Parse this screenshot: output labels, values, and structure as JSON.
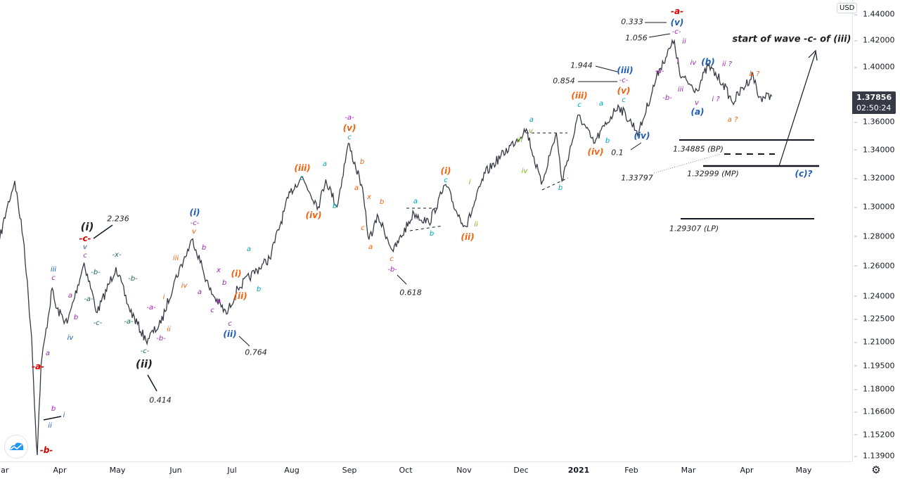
{
  "colors": {
    "price": "#363a45",
    "red": "#d50000",
    "blue": "#1e5bb8",
    "purple": "#9c27b0",
    "green": "#1b6b5a",
    "orange": "#f4600c",
    "cyan": "#00a5b5",
    "olive": "#7cb518",
    "black": "#222222"
  },
  "price_axis": {
    "currency": "USD",
    "last_price": "1.37856",
    "countdown": "02:50:24",
    "settings_icon": "gear-icon"
  },
  "chart_data": {
    "type": "line",
    "yscale": "log",
    "ylim": [
      1.139,
      1.44
    ],
    "grid": false,
    "y_ticks": [
      "1.44000",
      "1.42000",
      "1.40000",
      "1.36000",
      "1.34000",
      "1.32000",
      "1.30000",
      "1.28000",
      "1.26000",
      "1.24000",
      "1.22500",
      "1.21000",
      "1.19500",
      "1.18000",
      "1.16600",
      "1.15200",
      "1.13900"
    ],
    "x_ticks": [
      "Mar",
      "Apr",
      "May",
      "Jun",
      "Jul",
      "Aug",
      "Sep",
      "Oct",
      "Nov",
      "Dec",
      "2021",
      "Feb",
      "Mar",
      "Apr",
      "May"
    ],
    "series": [
      {
        "x": [
          "2020-02-28",
          "2020-03-03",
          "2020-03-07",
          "2020-03-12",
          "2020-03-16",
          "2020-03-18",
          "2020-03-19",
          "2020-03-21",
          "2020-03-27",
          "2020-03-29",
          "2020-04-04",
          "2020-04-13",
          "2020-04-20",
          "2020-04-30",
          "2020-05-07",
          "2020-05-16",
          "2020-05-24",
          "2020-05-31",
          "2020-06-10",
          "2020-06-19",
          "2020-06-28",
          "2020-07-04",
          "2020-07-21",
          "2020-08-01",
          "2020-08-07",
          "2020-08-16",
          "2020-08-20",
          "2020-08-26",
          "2020-09-01",
          "2020-09-08",
          "2020-09-12",
          "2020-09-17",
          "2020-09-25",
          "2020-10-06",
          "2020-10-14",
          "2020-10-23",
          "2020-10-29",
          "2020-11-03",
          "2020-11-13",
          "2020-12-05",
          "2020-12-13",
          "2020-12-21",
          "2020-12-24",
          "2021-01-02",
          "2021-01-10",
          "2021-01-23",
          "2021-02-03",
          "2021-02-14",
          "2021-02-22",
          "2021-02-25",
          "2021-03-06",
          "2021-03-12",
          "2021-03-20",
          "2021-03-25",
          "2021-04-05",
          "2021-04-08",
          "2021-04-15"
        ],
        "y": [
          1.278,
          1.3,
          1.318,
          1.274,
          1.213,
          1.16,
          1.1395,
          1.195,
          1.245,
          1.232,
          1.222,
          1.262,
          1.229,
          1.259,
          1.232,
          1.211,
          1.222,
          1.249,
          1.278,
          1.244,
          1.228,
          1.245,
          1.265,
          1.31,
          1.321,
          1.3,
          1.319,
          1.3,
          1.3445,
          1.3155,
          1.2776,
          1.2932,
          1.2695,
          1.2958,
          1.2888,
          1.3155,
          1.2958,
          1.2864,
          1.3234,
          1.3548,
          1.3155,
          1.3521,
          1.3179,
          1.365,
          1.3445,
          1.372,
          1.3521,
          1.3987,
          1.4197,
          1.3935,
          1.3832,
          1.401,
          1.388,
          1.3739,
          1.3946,
          1.3776,
          1.37856
        ]
      }
    ],
    "levels": [
      {
        "label": "1.34885 (BP)",
        "value": 1.34885
      },
      {
        "label": "1.32999 (MP)",
        "value": 1.32999
      },
      {
        "label": "1.29307 (LP)",
        "value": 1.29307
      },
      {
        "label": "1.33797",
        "value": 1.33797
      }
    ],
    "annotations": [
      {
        "t": "(i)",
        "c": "black",
        "k": "big"
      },
      {
        "t": "2.236",
        "c": "black",
        "k": "num"
      },
      {
        "t": "-c-",
        "c": "red",
        "k": "mid"
      },
      {
        "t": "v",
        "c": "blue"
      },
      {
        "t": "c",
        "c": "purple"
      },
      {
        "t": "iii",
        "c": "blue"
      },
      {
        "t": "c",
        "c": "purple"
      },
      {
        "t": "a",
        "c": "purple"
      },
      {
        "t": "b",
        "c": "purple"
      },
      {
        "t": "iv",
        "c": "blue"
      },
      {
        "t": "-b-",
        "c": "green"
      },
      {
        "t": "-a-",
        "c": "green"
      },
      {
        "t": "-c-",
        "c": "green"
      },
      {
        "t": "-x-",
        "c": "green"
      },
      {
        "t": "-b-",
        "c": "green"
      },
      {
        "t": "-a-",
        "c": "green"
      },
      {
        "t": "-c-",
        "c": "green"
      },
      {
        "t": "-a-",
        "c": "purple"
      },
      {
        "t": "-b-",
        "c": "purple"
      },
      {
        "t": "i",
        "c": "orange"
      },
      {
        "t": "ii",
        "c": "orange"
      },
      {
        "t": "iii",
        "c": "orange"
      },
      {
        "t": "iv",
        "c": "orange"
      },
      {
        "t": "(ii)",
        "c": "black",
        "k": "big"
      },
      {
        "t": "0.414",
        "c": "black",
        "k": "num"
      },
      {
        "t": "a",
        "c": "purple"
      },
      {
        "t": "-a-",
        "c": "red",
        "k": "mid"
      },
      {
        "t": "b",
        "c": "purple"
      },
      {
        "t": "i",
        "c": "blue"
      },
      {
        "t": "ii",
        "c": "blue"
      },
      {
        "t": "-b-",
        "c": "red",
        "k": "mid"
      },
      {
        "t": "(i)",
        "c": "blue",
        "k": "mid"
      },
      {
        "t": "-c-",
        "c": "purple"
      },
      {
        "t": "v",
        "c": "orange"
      },
      {
        "t": "b",
        "c": "purple"
      },
      {
        "t": "a",
        "c": "purple"
      },
      {
        "t": "x",
        "c": "purple"
      },
      {
        "t": "b",
        "c": "purple"
      },
      {
        "t": "a",
        "c": "purple"
      },
      {
        "t": "c",
        "c": "purple"
      },
      {
        "t": "c",
        "c": "purple"
      },
      {
        "t": "(ii)",
        "c": "blue",
        "k": "mid"
      },
      {
        "t": "0.764",
        "c": "black",
        "k": "num"
      },
      {
        "t": "(i)",
        "c": "orange",
        "k": "mid"
      },
      {
        "t": "(ii)",
        "c": "orange",
        "k": "mid"
      },
      {
        "t": "a",
        "c": "cyan"
      },
      {
        "t": "b",
        "c": "cyan"
      },
      {
        "t": "(iii)",
        "c": "orange",
        "k": "mid"
      },
      {
        "t": "c",
        "c": "cyan"
      },
      {
        "t": "a",
        "c": "cyan"
      },
      {
        "t": "b",
        "c": "cyan"
      },
      {
        "t": "(iv)",
        "c": "orange",
        "k": "mid"
      },
      {
        "t": "-a-",
        "c": "purple"
      },
      {
        "t": "(v)",
        "c": "orange",
        "k": "mid"
      },
      {
        "t": "c",
        "c": "cyan"
      },
      {
        "t": "b",
        "c": "orange"
      },
      {
        "t": "a",
        "c": "orange"
      },
      {
        "t": "x",
        "c": "orange"
      },
      {
        "t": "c",
        "c": "orange"
      },
      {
        "t": "b",
        "c": "orange"
      },
      {
        "t": "a",
        "c": "orange"
      },
      {
        "t": "c",
        "c": "orange"
      },
      {
        "t": "-b-",
        "c": "purple"
      },
      {
        "t": "0.618",
        "c": "black",
        "k": "num"
      },
      {
        "t": "a",
        "c": "cyan"
      },
      {
        "t": "b",
        "c": "cyan"
      },
      {
        "t": "(i)",
        "c": "orange",
        "k": "mid"
      },
      {
        "t": "c",
        "c": "cyan"
      },
      {
        "t": "i",
        "c": "olive"
      },
      {
        "t": "ii",
        "c": "olive"
      },
      {
        "t": "(ii)",
        "c": "orange",
        "k": "mid"
      },
      {
        "t": "iii",
        "c": "olive"
      },
      {
        "t": "a",
        "c": "cyan"
      },
      {
        "t": "v",
        "c": "olive"
      },
      {
        "t": "iv",
        "c": "olive"
      },
      {
        "t": "b",
        "c": "cyan"
      },
      {
        "t": "(iii)",
        "c": "orange",
        "k": "mid"
      },
      {
        "t": "c",
        "c": "cyan"
      },
      {
        "t": "a",
        "c": "cyan"
      },
      {
        "t": "b",
        "c": "cyan"
      },
      {
        "t": "(iv)",
        "c": "orange",
        "k": "mid"
      },
      {
        "t": "1.944",
        "c": "black",
        "k": "num"
      },
      {
        "t": "0.854",
        "c": "black",
        "k": "num"
      },
      {
        "t": "(iii)",
        "c": "blue",
        "k": "mid"
      },
      {
        "t": "-c-",
        "c": "purple"
      },
      {
        "t": "(v)",
        "c": "orange",
        "k": "mid"
      },
      {
        "t": "c",
        "c": "cyan"
      },
      {
        "t": "(iv)",
        "c": "blue",
        "k": "mid"
      },
      {
        "t": "0.1",
        "c": "black",
        "k": "num"
      },
      {
        "t": "1.33797",
        "c": "black",
        "k": "num"
      },
      {
        "t": "0.333",
        "c": "black",
        "k": "num"
      },
      {
        "t": "-a-",
        "c": "red",
        "k": "mid"
      },
      {
        "t": "(v)",
        "c": "blue",
        "k": "mid"
      },
      {
        "t": "-c-",
        "c": "purple"
      },
      {
        "t": "1.056",
        "c": "black",
        "k": "num"
      },
      {
        "t": "ii",
        "c": "purple"
      },
      {
        "t": "-a-",
        "c": "purple"
      },
      {
        "t": "i",
        "c": "purple"
      },
      {
        "t": "-b-",
        "c": "purple"
      },
      {
        "t": "iii",
        "c": "purple"
      },
      {
        "t": "iv",
        "c": "purple"
      },
      {
        "t": "v",
        "c": "purple"
      },
      {
        "t": "(b)",
        "c": "blue",
        "k": "mid"
      },
      {
        "t": "(a)",
        "c": "blue",
        "k": "mid"
      },
      {
        "t": "ii ?",
        "c": "purple"
      },
      {
        "t": "i ?",
        "c": "purple"
      },
      {
        "t": "a ?",
        "c": "orange"
      },
      {
        "t": "b ?",
        "c": "orange"
      },
      {
        "t": "start of wave -c- of (iii)",
        "c": "black",
        "k": "title"
      },
      {
        "t": "1.34885 (BP)",
        "c": "black",
        "k": "num"
      },
      {
        "t": "1.32999 (MP)",
        "c": "black",
        "k": "num"
      },
      {
        "t": "(c)?",
        "c": "blue",
        "k": "mid"
      },
      {
        "t": "1.29307 (LP)",
        "c": "black",
        "k": "num"
      }
    ]
  }
}
